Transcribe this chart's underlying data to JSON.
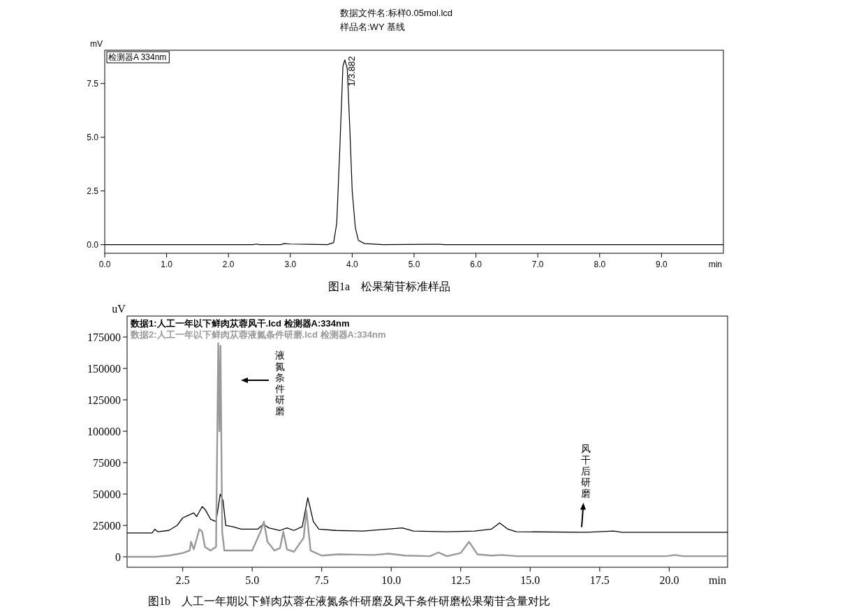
{
  "chart_data": [
    {
      "type": "line",
      "title": "数据文件名:标样0.05mol.lcd",
      "subtitle": "样品名:WY 基线",
      "xlabel": "min",
      "ylabel": "mV",
      "legend": "top left",
      "grid": false,
      "xlim": [
        0,
        10
      ],
      "ylim": [
        -0.4,
        9.05
      ],
      "xticks": [
        {
          "value": 0,
          "label": "0.0"
        },
        {
          "value": 1,
          "label": "1.0"
        },
        {
          "value": 2,
          "label": "2.0"
        },
        {
          "value": 3,
          "label": "3.0"
        },
        {
          "value": 4,
          "label": "4.0"
        },
        {
          "value": 5,
          "label": "5.0"
        },
        {
          "value": 6,
          "label": "6.0"
        },
        {
          "value": 7,
          "label": "7.0"
        },
        {
          "value": 8,
          "label": "8.0"
        },
        {
          "value": 9,
          "label": "9.0"
        }
      ],
      "yticks": [
        {
          "value": 0,
          "label": "0.0"
        },
        2.5,
        {
          "value": 5,
          "label": "5.0"
        },
        7.5
      ],
      "series": [
        {
          "name": "检测器A 334nm",
          "color": "#000000",
          "x": [
            0,
            2.4,
            2.45,
            2.5,
            2.85,
            2.9,
            3.0,
            3.3,
            3.6,
            3.7,
            3.75,
            3.8,
            3.85,
            3.88,
            3.92,
            3.96,
            4.0,
            4.05,
            4.1,
            4.2,
            4.5,
            5.25,
            5.4,
            5.5,
            10
          ],
          "values": [
            0,
            0,
            0.03,
            0,
            0,
            0.05,
            0.03,
            0.02,
            0,
            0.1,
            1.0,
            4.5,
            8.3,
            8.6,
            8.2,
            5.5,
            2.5,
            0.8,
            0.2,
            0.05,
            0,
            0.02,
            0.02,
            0,
            0
          ]
        }
      ],
      "annotations": [
        "图1a　松果菊苷标准样品",
        {
          "text": "1/3.882",
          "x": 3.882,
          "y": 8.6
        }
      ]
    },
    {
      "type": "line",
      "xlabel": "min",
      "ylabel": "uV",
      "legend": "top left",
      "grid": false,
      "xlim": [
        0.5,
        22.1
      ],
      "ylim": [
        -8300,
        191700
      ],
      "xticks": [
        2.5,
        {
          "value": 5,
          "label": "5.0"
        },
        7.5,
        {
          "value": 10,
          "label": "10.0"
        },
        12.5,
        {
          "value": 15,
          "label": "15.0"
        },
        17.5,
        {
          "value": 20,
          "label": "20.0"
        }
      ],
      "yticks": [
        0,
        25000,
        50000,
        75000,
        100000,
        125000,
        150000,
        175000
      ],
      "series": [
        {
          "name": "数据1:人工一年以下鲜肉苁蓉风干.lcd 检测器A:334nm",
          "color": "#000000",
          "x": [
            0.5,
            1.4,
            1.5,
            1.6,
            2.0,
            2.3,
            2.5,
            2.7,
            2.9,
            3.0,
            3.2,
            3.3,
            3.5,
            3.7,
            3.85,
            3.95,
            4.05,
            4.3,
            4.6,
            5.2,
            5.4,
            5.6,
            6.0,
            6.25,
            6.5,
            6.8,
            7.0,
            7.2,
            7.4,
            8,
            9,
            10.4,
            10.8,
            12,
            13,
            13.6,
            13.9,
            14.2,
            14.5,
            17,
            18,
            18.3,
            22.1
          ],
          "values": [
            19000,
            19000,
            22000,
            20000,
            21000,
            25000,
            31000,
            33000,
            35000,
            32000,
            40000,
            38000,
            30000,
            28000,
            50000,
            45000,
            25000,
            24000,
            22000,
            22000,
            26000,
            23000,
            21000,
            23000,
            21000,
            24000,
            47000,
            28000,
            22000,
            21000,
            20500,
            23000,
            20500,
            20000,
            20500,
            22000,
            27000,
            22000,
            20000,
            19500,
            20500,
            19500,
            19500
          ]
        },
        {
          "name": "数据2:人工一年以下鲜肉苁蓉液氮条件研磨.lcd 检测器A:334nm",
          "color": "#999999",
          "x": [
            0.5,
            1.5,
            2.0,
            2.5,
            2.75,
            2.8,
            2.9,
            3.1,
            3.2,
            3.3,
            3.5,
            3.7,
            3.78,
            3.82,
            3.86,
            3.92,
            4.0,
            4.3,
            5.0,
            5.3,
            5.42,
            5.55,
            5.8,
            6.0,
            6.12,
            6.25,
            6.5,
            6.85,
            6.95,
            7.1,
            7.5,
            8.1,
            9.4,
            9.9,
            10.5,
            11.4,
            11.7,
            12.0,
            12.5,
            12.8,
            13.1,
            13.6,
            14.0,
            14.5,
            19.9,
            20.2,
            20.5,
            22.1
          ],
          "values": [
            0,
            0,
            1000,
            3000,
            5000,
            12000,
            6000,
            22000,
            20000,
            8000,
            5000,
            8000,
            170000,
            100000,
            168000,
            20000,
            5000,
            5000,
            5000,
            20000,
            28000,
            12000,
            5000,
            7000,
            20000,
            6000,
            4000,
            15000,
            37000,
            5000,
            1000,
            2000,
            1500,
            2500,
            1000,
            500,
            3500,
            500,
            3000,
            12000,
            2000,
            1000,
            1500,
            500,
            500,
            1500,
            500,
            500
          ]
        }
      ],
      "annotations": [
        "图1b　人工一年期以下鲜肉苁蓉在液氮条件研磨及风干条件研磨松果菊苷含量对比",
        "液氮条件研磨",
        {
          "text": "风干后研磨",
          "x": 16.85,
          "y": 22000
        }
      ]
    }
  ]
}
